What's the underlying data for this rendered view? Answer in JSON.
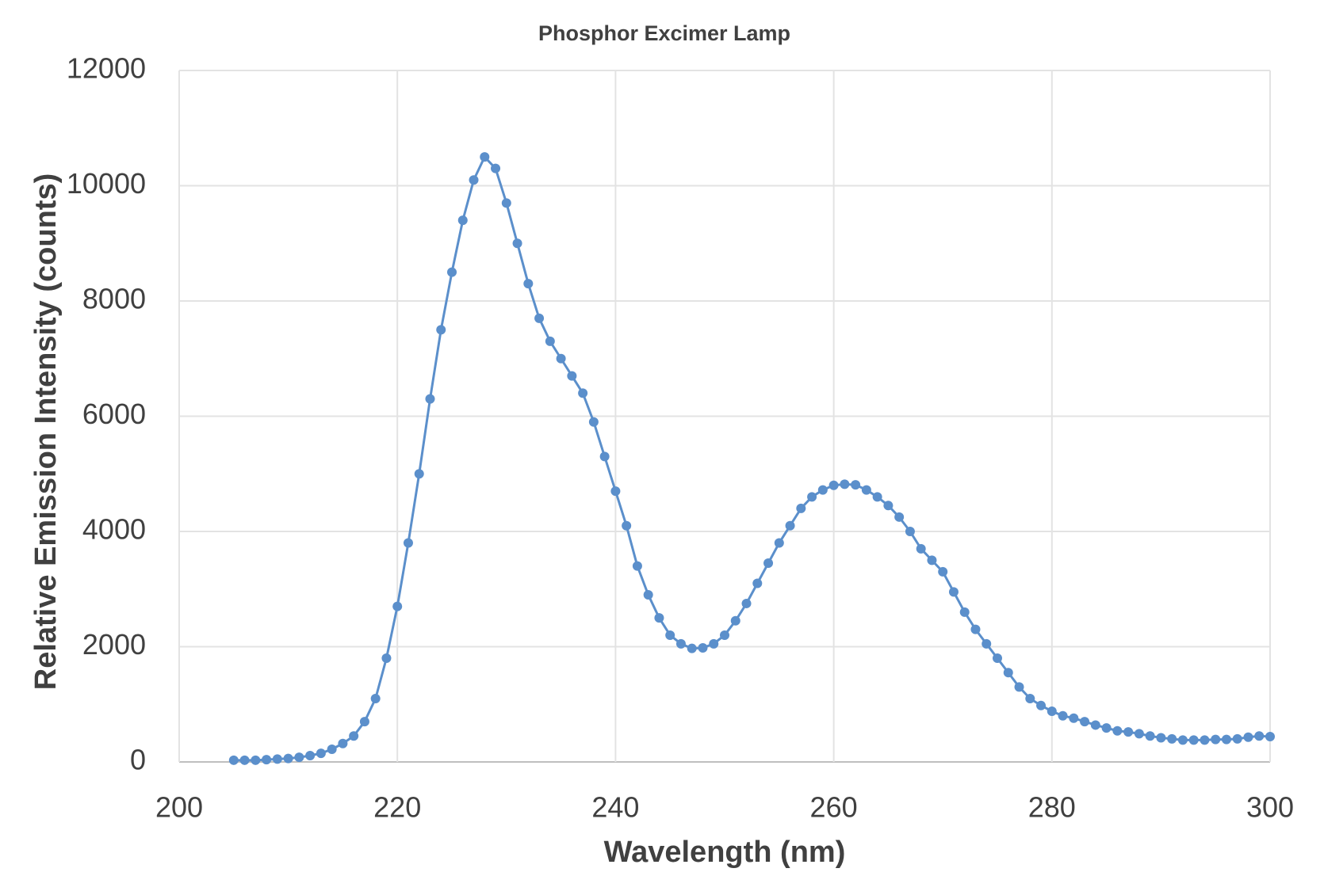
{
  "chart_data": {
    "type": "line",
    "title": "Phosphor Excimer Lamp",
    "xlabel": "Wavelength (nm)",
    "ylabel": "Relative Emission Intensity (counts)",
    "x": [
      205,
      206,
      207,
      208,
      209,
      210,
      211,
      212,
      213,
      214,
      215,
      216,
      217,
      218,
      219,
      220,
      221,
      222,
      223,
      224,
      225,
      226,
      227,
      228,
      229,
      230,
      231,
      232,
      233,
      234,
      235,
      236,
      237,
      238,
      239,
      240,
      241,
      242,
      243,
      244,
      245,
      246,
      247,
      248,
      249,
      250,
      251,
      252,
      253,
      254,
      255,
      256,
      257,
      258,
      259,
      260,
      261,
      262,
      263,
      264,
      265,
      266,
      267,
      268,
      269,
      270,
      271,
      272,
      273,
      274,
      275,
      276,
      277,
      278,
      279,
      280,
      281,
      282,
      283,
      284,
      285,
      286,
      287,
      288,
      289,
      290,
      291,
      292,
      293,
      294,
      295,
      296,
      297,
      298,
      299,
      300
    ],
    "values": [
      30,
      30,
      30,
      40,
      50,
      60,
      80,
      110,
      150,
      220,
      320,
      450,
      700,
      1100,
      1800,
      2700,
      3800,
      5000,
      6300,
      7500,
      8500,
      9400,
      10100,
      10500,
      10300,
      9700,
      9000,
      8300,
      7700,
      7300,
      7000,
      6700,
      6400,
      5900,
      5300,
      4700,
      4100,
      3400,
      2900,
      2500,
      2200,
      2050,
      1970,
      1980,
      2050,
      2200,
      2450,
      2750,
      3100,
      3450,
      3800,
      4100,
      4400,
      4600,
      4720,
      4800,
      4820,
      4810,
      4720,
      4600,
      4450,
      4250,
      4000,
      3700,
      3500,
      3300,
      2950,
      2600,
      2300,
      2050,
      1800,
      1550,
      1300,
      1100,
      980,
      880,
      800,
      760,
      700,
      640,
      590,
      540,
      520,
      490,
      450,
      420,
      400,
      380,
      380,
      380,
      390,
      390,
      400,
      430,
      450,
      440
    ],
    "color": "#5b8fcb",
    "xlim": [
      200,
      300
    ],
    "xticks": [
      200,
      220,
      240,
      260,
      280,
      300
    ],
    "ylim": [
      0,
      12000
    ],
    "yticks": [
      0,
      2000,
      4000,
      6000,
      8000,
      10000,
      12000
    ],
    "grid": true
  }
}
